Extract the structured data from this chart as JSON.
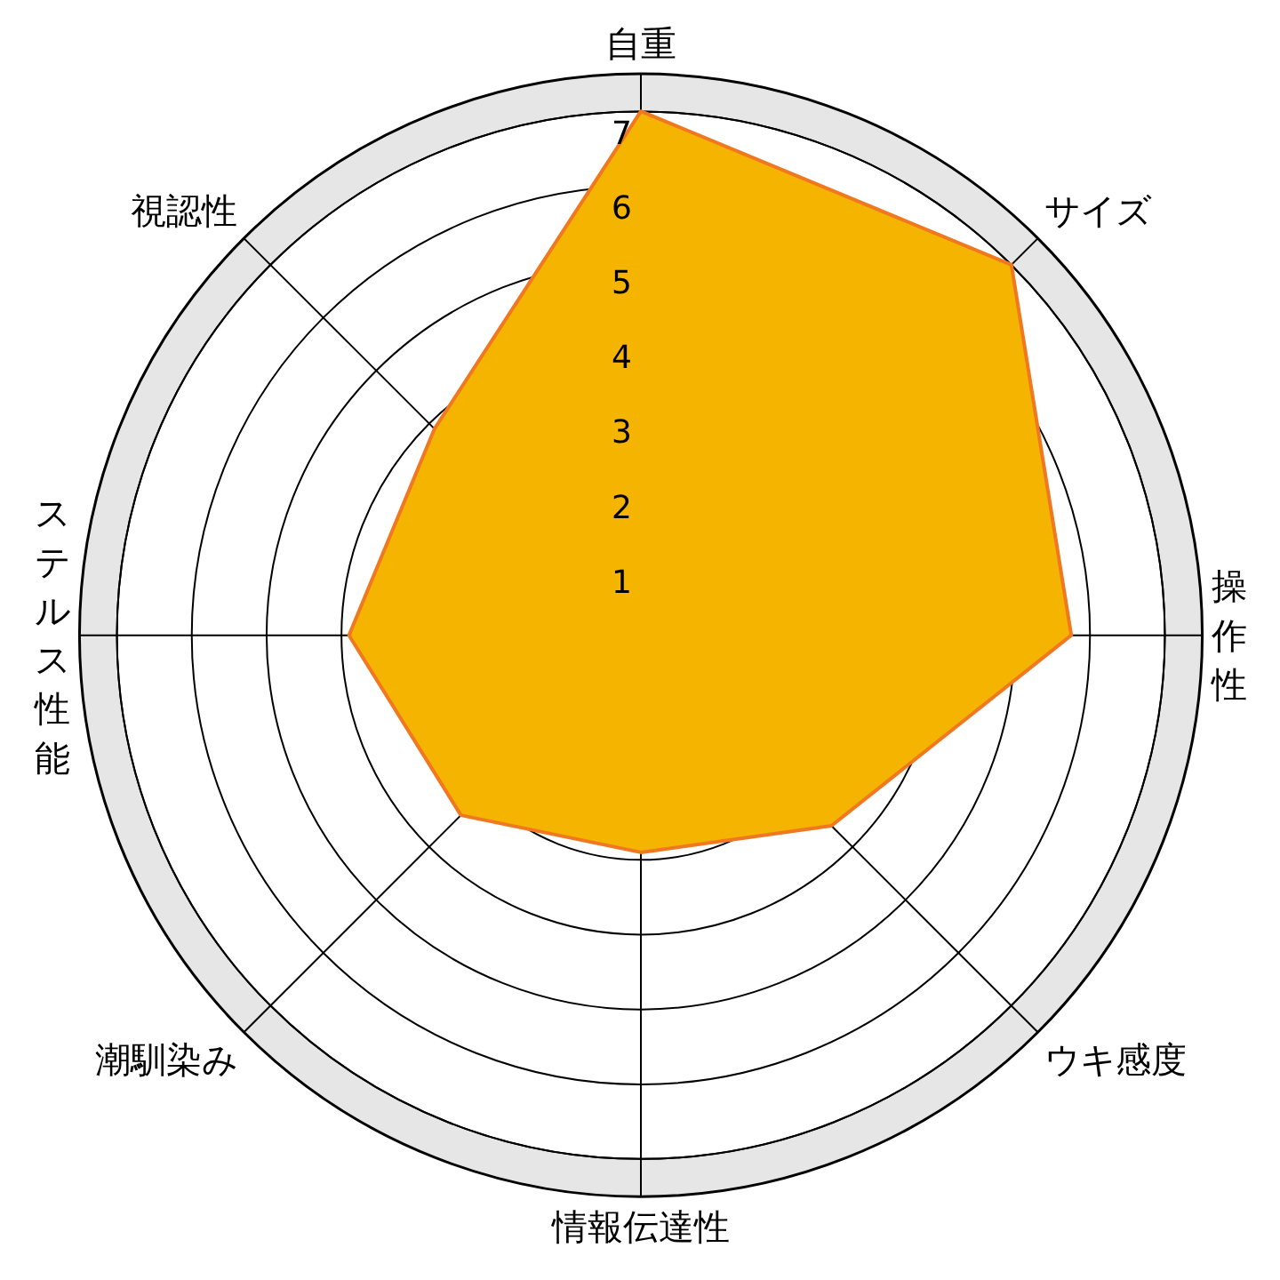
{
  "chart_data": {
    "type": "radar",
    "categories": [
      "自重",
      "サイズ",
      "操作性",
      "ウキ感度",
      "情報伝達性",
      "潮馴染み",
      "ステルス性能",
      "視認性"
    ],
    "series": [
      {
        "color": "#f5b400",
        "values": [
          7,
          7,
          5.75,
          3.6,
          2.9,
          3.4,
          3.9,
          3.9
        ]
      }
    ],
    "ylim": [
      0,
      7.5
    ],
    "yticks": [
      1,
      2,
      3,
      4,
      5,
      6,
      7
    ],
    "grid": true
  }
}
